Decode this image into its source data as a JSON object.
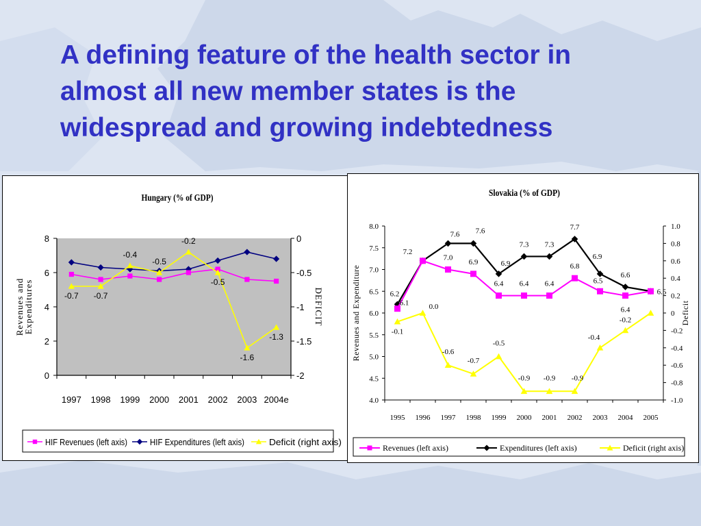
{
  "slide": {
    "title": "A defining feature of the health sector in\nalmost all new member states is the\nwidespread and growing indebtedness",
    "background_color": "#dde5f2",
    "map_color": "#cdd8ea",
    "title_color": "#3131c4"
  },
  "chart_data": [
    {
      "id": "hungary",
      "type": "line",
      "title": "Hungary (%  of GDP)",
      "categories": [
        "1997",
        "1998",
        "1999",
        "2000",
        "2001",
        "2002",
        "2003",
        "2004e"
      ],
      "ylabel": "Revenues and Expenditures",
      "y2label": "DEFICIT",
      "ylim": [
        0,
        8
      ],
      "y2lim": [
        -2,
        0
      ],
      "yticks": [
        0,
        2,
        4,
        6,
        8
      ],
      "y2ticks": [
        -2,
        -1.5,
        -1,
        -0.5,
        0
      ],
      "plot_background": "#c0c0c0",
      "legend_position": "bottom",
      "series": [
        {
          "name": "HIF Revenues (left axis)",
          "axis": "left",
          "color": "#ff00ff",
          "marker": "square",
          "values": [
            5.9,
            5.6,
            5.8,
            5.6,
            6.0,
            6.2,
            5.6,
            5.5
          ],
          "labels": [
            "",
            "",
            "",
            "",
            "",
            "",
            "",
            ""
          ]
        },
        {
          "name": "HIF Expenditures (left axis)",
          "axis": "left",
          "color": "#000080",
          "marker": "diamond",
          "values": [
            6.6,
            6.3,
            6.2,
            6.1,
            6.2,
            6.7,
            7.2,
            6.8
          ],
          "labels": [
            "",
            "",
            "",
            "",
            "",
            "",
            "",
            ""
          ]
        },
        {
          "name": "Deficit (right axis)",
          "axis": "right",
          "color": "#ffff00",
          "marker": "triangle",
          "values": [
            -0.7,
            -0.7,
            -0.4,
            -0.5,
            -0.2,
            -0.5,
            -1.6,
            -1.3
          ],
          "labels": [
            "-0.7",
            "-0.7",
            "-0.4",
            "-0.5",
            "-0.2",
            "-0.5",
            "-1.6",
            "-1.3"
          ]
        }
      ]
    },
    {
      "id": "slovakia",
      "type": "line",
      "title": "Slovakia (%  of GDP)",
      "categories": [
        "1995",
        "1996",
        "1997",
        "1998",
        "1999",
        "2000",
        "2001",
        "2002",
        "2003",
        "2004",
        "2005"
      ],
      "ylabel": "Revenues and Expenditure",
      "y2label": "Deficit",
      "ylim": [
        4.0,
        8.0
      ],
      "y2lim": [
        -1.0,
        1.0
      ],
      "yticks": [
        "4.0",
        "4.5",
        "5.0",
        "5.5",
        "6.0",
        "6.5",
        "7.0",
        "7.5",
        "8.0"
      ],
      "y2ticks": [
        "-1.0",
        "-0.8",
        "-0.6",
        "-0.4",
        "-0.2",
        "0",
        "0.2",
        "0.4",
        "0.6",
        "0.8",
        "1.0"
      ],
      "plot_background": "#ffffff",
      "legend_position": "bottom",
      "series": [
        {
          "name": "Revenues (left axis)",
          "axis": "left",
          "color": "#ff00ff",
          "marker": "square",
          "values": [
            6.1,
            7.2,
            7.0,
            6.9,
            6.4,
            6.4,
            6.4,
            6.8,
            6.5,
            6.4,
            6.5
          ],
          "labels": [
            "6.1",
            "",
            "7.0",
            "6.9",
            "6.4",
            "6.4",
            "6.4",
            "6.8",
            "6.5",
            "6.4",
            ""
          ]
        },
        {
          "name": "Expenditures (left axis)",
          "axis": "left",
          "color": "#000000",
          "marker": "diamond",
          "values": [
            6.2,
            7.2,
            7.6,
            7.6,
            6.9,
            7.3,
            7.3,
            7.7,
            6.9,
            6.6,
            6.5
          ],
          "labels": [
            "6.2",
            "7.2",
            "7.6",
            "7.6",
            "6.9",
            "7.3",
            "7.3",
            "7.7",
            "6.9",
            "6.6",
            "6.5"
          ]
        },
        {
          "name": "Deficit (right axis)",
          "axis": "right",
          "color": "#ffff00",
          "marker": "triangle",
          "values": [
            -0.1,
            0.0,
            -0.6,
            -0.7,
            -0.5,
            -0.9,
            -0.9,
            -0.9,
            -0.4,
            -0.2,
            0.0
          ],
          "labels": [
            "-0.1",
            "0.0",
            "-0.6",
            "-0.7",
            "-0.5",
            "-0.9",
            "-0.9",
            "-0.9",
            "-0.4",
            "-0.2",
            ""
          ]
        }
      ]
    }
  ]
}
